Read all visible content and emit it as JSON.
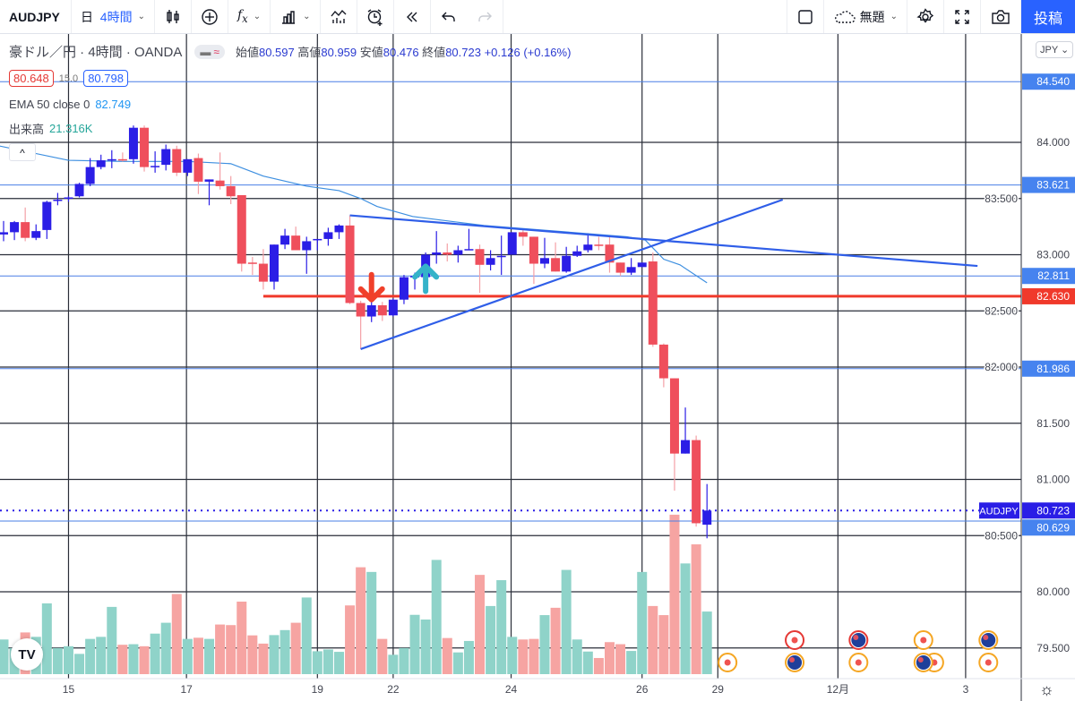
{
  "toolbar": {
    "symbol": "AUDJPY",
    "day": "日",
    "interval": "4時間",
    "layout_name": "無題",
    "post_label": "投稿"
  },
  "legend": {
    "title": "豪ドル／円 · 4時間 · OANDA",
    "open_label": "始値",
    "open": "80.597",
    "high_label": "高値",
    "high": "80.959",
    "low_label": "安値",
    "low": "80.476",
    "close_label": "終値",
    "close": "80.723",
    "change": "+0.126 (+0.16%)",
    "bid": "80.648",
    "spread": "15.0",
    "ask": "80.798",
    "ema_label": "EMA 50 close 0",
    "ema_value": "82.749",
    "vol_label": "出来高",
    "vol_value": "21.316K",
    "collapse": "^"
  },
  "currency": "JPY ⌄",
  "logo": "TV",
  "colors": {
    "up": "#2b1ee6",
    "down": "#ef4f5c",
    "vol_up": "#8fd3c9",
    "vol_down": "#f6a4a2",
    "ema": "#3d8fe0",
    "hline": "#4a7fe6",
    "support": "#f0392b",
    "trend": "#2f5ee8",
    "last": "#2a1ee6",
    "grid": "#2a2e39"
  },
  "chart_data": {
    "type": "candlestick",
    "symbol": "AUDJPY",
    "interval": "4H",
    "ylim": [
      79.35,
      84.9
    ],
    "y_ticks": [
      "84.000",
      "83.500",
      "83.000",
      "82.500",
      "82.000",
      "81.500",
      "81.000",
      "80.500",
      "80.000",
      "79.500"
    ],
    "x_ticks": [
      {
        "label": "15",
        "i": 6
      },
      {
        "label": "17",
        "i": 16.9
      },
      {
        "label": "19",
        "i": 29
      },
      {
        "label": "22",
        "i": 36
      },
      {
        "label": "24",
        "i": 46.9
      },
      {
        "label": "26",
        "i": 59
      },
      {
        "label": "29",
        "i": 66
      },
      {
        "label": "12月",
        "i": 77.1
      },
      {
        "label": "3",
        "i": 88.9
      }
    ],
    "candles_ohlcv_k": [
      [
        83.18,
        83.3,
        83.12,
        83.2,
        11.8
      ],
      [
        83.2,
        83.3,
        83.13,
        83.29,
        8.9
      ],
      [
        83.29,
        83.42,
        83.12,
        83.15,
        14.2
      ],
      [
        83.15,
        83.27,
        83.13,
        83.21,
        12.7
      ],
      [
        83.22,
        83.48,
        83.14,
        83.47,
        24.1
      ],
      [
        83.48,
        83.55,
        83.44,
        83.49,
        8.9
      ],
      [
        83.5,
        83.52,
        83.47,
        83.51,
        9.5
      ],
      [
        83.52,
        83.64,
        83.51,
        83.63,
        6.9
      ],
      [
        83.63,
        83.86,
        83.61,
        83.78,
        12.0
      ],
      [
        83.78,
        83.89,
        83.76,
        83.84,
        12.7
      ],
      [
        83.84,
        83.93,
        83.77,
        83.85,
        22.9
      ],
      [
        83.85,
        83.91,
        83.83,
        83.84,
        10.0
      ],
      [
        83.85,
        84.15,
        83.81,
        84.13,
        10.2
      ],
      [
        84.13,
        84.15,
        83.74,
        83.78,
        9.5
      ],
      [
        83.78,
        83.92,
        83.73,
        83.79,
        13.8
      ],
      [
        83.8,
        83.98,
        83.75,
        83.94,
        17.5
      ],
      [
        83.94,
        83.97,
        83.7,
        83.73,
        27.3
      ],
      [
        83.73,
        83.85,
        83.7,
        83.85,
        12.0
      ],
      [
        83.86,
        83.9,
        83.54,
        83.65,
        12.4
      ],
      [
        83.65,
        83.67,
        83.44,
        83.67,
        12.0
      ],
      [
        83.66,
        83.91,
        83.58,
        83.61,
        16.9
      ],
      [
        83.61,
        83.7,
        83.45,
        83.52,
        16.7
      ],
      [
        83.53,
        83.53,
        82.85,
        82.92,
        24.7
      ],
      [
        82.93,
        82.98,
        82.82,
        82.92,
        13.2
      ],
      [
        82.92,
        83.05,
        82.69,
        82.76,
        10.4
      ],
      [
        82.76,
        83.09,
        82.69,
        83.09,
        13.3
      ],
      [
        83.09,
        83.23,
        83.05,
        83.17,
        15.0
      ],
      [
        83.17,
        83.25,
        83.04,
        83.04,
        17.5
      ],
      [
        83.04,
        83.16,
        82.83,
        83.12,
        26.1
      ],
      [
        83.13,
        83.14,
        83.04,
        83.14,
        7.8
      ],
      [
        83.14,
        83.24,
        83.08,
        83.2,
        8.4
      ],
      [
        83.2,
        83.27,
        83.14,
        83.26,
        7.6
      ],
      [
        83.26,
        83.35,
        82.56,
        82.57,
        23.4
      ],
      [
        82.57,
        82.59,
        82.16,
        82.45,
        36.4
      ],
      [
        82.45,
        82.62,
        82.4,
        82.55,
        34.8
      ],
      [
        82.55,
        82.58,
        82.41,
        82.46,
        12.0
      ],
      [
        82.46,
        82.61,
        82.45,
        82.6,
        6.6
      ],
      [
        82.6,
        82.82,
        82.56,
        82.8,
        8.9
      ],
      [
        82.8,
        82.84,
        82.69,
        82.81,
        20.2
      ],
      [
        82.8,
        83.02,
        82.79,
        83.0,
        18.6
      ],
      [
        83.0,
        83.21,
        82.92,
        83.02,
        38.9
      ],
      [
        83.02,
        83.1,
        82.94,
        83.0,
        12.3
      ],
      [
        83.0,
        83.08,
        82.93,
        83.04,
        7.4
      ],
      [
        83.04,
        83.23,
        83.04,
        83.05,
        11.3
      ],
      [
        83.05,
        83.09,
        82.66,
        82.91,
        33.8
      ],
      [
        82.91,
        83.04,
        82.86,
        82.97,
        23.2
      ],
      [
        82.98,
        83.17,
        82.82,
        82.99,
        32.0
      ],
      [
        83.0,
        83.2,
        83.0,
        83.2,
        12.7
      ],
      [
        83.2,
        83.23,
        83.08,
        83.16,
        11.8
      ],
      [
        83.16,
        83.16,
        82.74,
        82.92,
        12.0
      ],
      [
        82.92,
        83.15,
        82.88,
        82.97,
        20.1
      ],
      [
        82.97,
        83.11,
        82.85,
        82.85,
        22.6
      ],
      [
        82.85,
        83.07,
        82.84,
        82.99,
        35.5
      ],
      [
        82.99,
        83.08,
        82.98,
        83.03,
        11.8
      ],
      [
        83.04,
        83.19,
        83.02,
        83.09,
        7.7
      ],
      [
        83.09,
        83.16,
        83.04,
        83.08,
        5.5
      ],
      [
        83.09,
        83.17,
        82.84,
        82.93,
        10.9
      ],
      [
        82.93,
        82.93,
        82.81,
        82.84,
        10.2
      ],
      [
        82.84,
        82.97,
        82.82,
        82.89,
        7.9
      ],
      [
        82.89,
        82.93,
        82.89,
        82.93,
        34.8
      ],
      [
        82.94,
        83.02,
        82.18,
        82.2,
        23.2
      ],
      [
        82.2,
        82.21,
        81.82,
        81.9,
        20.1
      ],
      [
        81.9,
        81.9,
        80.9,
        81.23,
        54.3
      ],
      [
        81.23,
        81.64,
        81.23,
        81.35,
        37.7
      ],
      [
        81.35,
        81.39,
        80.58,
        80.61,
        44.2
      ],
      [
        80.597,
        80.959,
        80.476,
        80.723,
        21.316
      ]
    ],
    "ema50": [
      [
        -1,
        83.98
      ],
      [
        6,
        83.84
      ],
      [
        11,
        83.83
      ],
      [
        17,
        83.83
      ],
      [
        21,
        83.81
      ],
      [
        24,
        83.7
      ],
      [
        28,
        83.61
      ],
      [
        31,
        83.57
      ],
      [
        33,
        83.5
      ],
      [
        34.5,
        83.43
      ],
      [
        37.8,
        83.34
      ],
      [
        44.4,
        83.26
      ],
      [
        57.6,
        83.16
      ],
      [
        59.3,
        83.13
      ],
      [
        61,
        82.96
      ],
      [
        62.5,
        82.91
      ],
      [
        65,
        82.75
      ]
    ],
    "horizontal_lines": [
      {
        "price": 84.54,
        "label": "84.540"
      },
      {
        "price": 83.621,
        "label": "83.621"
      },
      {
        "price": 82.811,
        "label": "82.811"
      },
      {
        "price": 81.986,
        "label": "81.986"
      },
      {
        "price": 80.629,
        "label": "80.629"
      }
    ],
    "support_line": {
      "price": 82.63,
      "label": "82.630",
      "from_i": 24
    },
    "trendlines": [
      {
        "from": [
          32,
          83.35
        ],
        "to": [
          90,
          82.9
        ]
      },
      {
        "from": [
          33,
          82.16
        ],
        "to": [
          72,
          83.49
        ]
      }
    ],
    "arrows": [
      {
        "dir": "down",
        "i": 34,
        "price": 82.6,
        "color": "#f0402a"
      },
      {
        "dir": "up",
        "i": 39,
        "price": 82.85,
        "color": "#35b3c9"
      }
    ],
    "last_price": {
      "price": 80.723,
      "label": "80.723",
      "tag": "AUDJPY"
    },
    "events": [
      {
        "i": 66.9,
        "row": 2,
        "kind": "dot",
        "ring": "#f5a623"
      },
      {
        "i": 73.1,
        "row": 1,
        "kind": "dot",
        "ring": "#e53935"
      },
      {
        "i": 73.1,
        "row": 2,
        "kind": "flag",
        "ring": "#f5a623"
      },
      {
        "i": 79,
        "row": 1,
        "kind": "flag",
        "ring": "#e53935"
      },
      {
        "i": 79,
        "row": 2,
        "kind": "dot",
        "ring": "#f5a623"
      },
      {
        "i": 85,
        "row": 1,
        "kind": "dot",
        "ring": "#f5a623"
      },
      {
        "i": 86,
        "row": 2,
        "kind": "dot",
        "ring": "#f5a623"
      },
      {
        "i": 85,
        "row": 2,
        "kind": "flag",
        "ring": "#f5a623"
      },
      {
        "i": 91,
        "row": 1,
        "kind": "flag",
        "ring": "#f5a623"
      },
      {
        "i": 91,
        "row": 2,
        "kind": "dot",
        "ring": "#f5a623"
      }
    ]
  }
}
